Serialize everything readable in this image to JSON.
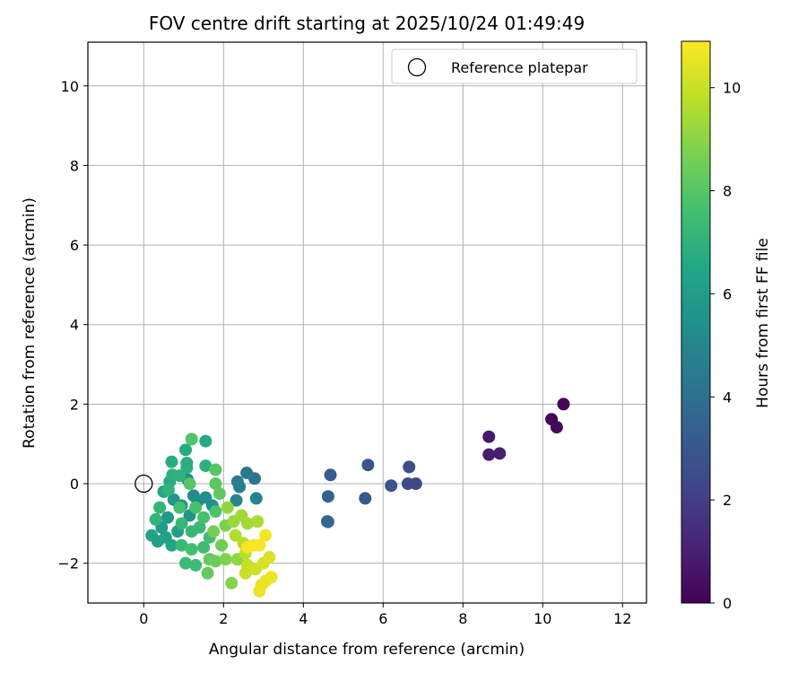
{
  "chart_data": {
    "type": "scatter",
    "title": "FOV centre drift starting at 2025/10/24 01:49:49",
    "xlabel": "Angular distance from reference (arcmin)",
    "ylabel": "Rotation from reference (arcmin)",
    "xlim": [
      -1.4,
      12.6
    ],
    "ylim": [
      -3.0,
      11.1
    ],
    "xticks": [
      "0",
      "2",
      "4",
      "6",
      "8",
      "10",
      "12"
    ],
    "xtick_values": [
      0,
      2,
      4,
      6,
      8,
      10,
      12
    ],
    "yticks": [
      "−2",
      "0",
      "2",
      "4",
      "6",
      "8",
      "10"
    ],
    "ytick_values": [
      -2,
      0,
      2,
      4,
      6,
      8,
      10
    ],
    "grid": true,
    "legend": {
      "position": "top-right",
      "label": "Reference platepar",
      "marker": "open-circle"
    },
    "reference_point": {
      "x": 0,
      "y": 0
    },
    "colorbar": {
      "label": "Hours from first FF file",
      "range": [
        0,
        10.9
      ],
      "ticks": [
        "0",
        "2",
        "4",
        "6",
        "8",
        "10"
      ],
      "tick_values": [
        0,
        2,
        4,
        6,
        8,
        10
      ],
      "colormap": "viridis"
    },
    "points": [
      {
        "x": 10.52,
        "y": 2.0,
        "h": 0.1
      },
      {
        "x": 10.22,
        "y": 1.62,
        "h": 0.2
      },
      {
        "x": 10.35,
        "y": 1.42,
        "h": 0.25
      },
      {
        "x": 8.65,
        "y": 1.18,
        "h": 0.8
      },
      {
        "x": 8.65,
        "y": 0.73,
        "h": 0.9
      },
      {
        "x": 8.92,
        "y": 0.76,
        "h": 0.95
      },
      {
        "x": 6.82,
        "y": 0.0,
        "h": 2.4
      },
      {
        "x": 6.62,
        "y": 0.0,
        "h": 2.5
      },
      {
        "x": 6.65,
        "y": 0.42,
        "h": 2.6
      },
      {
        "x": 6.2,
        "y": -0.05,
        "h": 2.8
      },
      {
        "x": 5.62,
        "y": 0.47,
        "h": 2.9
      },
      {
        "x": 5.55,
        "y": -0.37,
        "h": 3.0
      },
      {
        "x": 4.68,
        "y": 0.22,
        "h": 3.2
      },
      {
        "x": 4.62,
        "y": -0.32,
        "h": 3.4
      },
      {
        "x": 4.6,
        "y": -0.95,
        "h": 3.6
      },
      {
        "x": 4.62,
        "y": -0.96,
        "h": 3.7
      },
      {
        "x": 2.78,
        "y": 0.13,
        "h": 4.2
      },
      {
        "x": 2.58,
        "y": 0.27,
        "h": 4.4
      },
      {
        "x": 2.35,
        "y": 0.05,
        "h": 4.5
      },
      {
        "x": 2.4,
        "y": -0.08,
        "h": 4.7
      },
      {
        "x": 2.82,
        "y": -0.37,
        "h": 4.8
      },
      {
        "x": 2.32,
        "y": -0.42,
        "h": 4.9
      },
      {
        "x": 1.1,
        "y": 0.1,
        "h": 5.0
      },
      {
        "x": 1.25,
        "y": -0.3,
        "h": 5.2
      },
      {
        "x": 1.35,
        "y": -0.45,
        "h": 5.3
      },
      {
        "x": 1.55,
        "y": -0.35,
        "h": 5.4
      },
      {
        "x": 1.72,
        "y": -0.55,
        "h": 5.5
      },
      {
        "x": 0.95,
        "y": -0.55,
        "h": 5.6
      },
      {
        "x": 1.15,
        "y": -0.8,
        "h": 5.6
      },
      {
        "x": 0.75,
        "y": -0.4,
        "h": 5.7
      },
      {
        "x": 0.6,
        "y": -0.85,
        "h": 5.8
      },
      {
        "x": 0.45,
        "y": -1.1,
        "h": 5.9
      },
      {
        "x": 0.85,
        "y": -1.2,
        "h": 6.0
      },
      {
        "x": 0.55,
        "y": -1.35,
        "h": 6.1
      },
      {
        "x": 0.35,
        "y": -1.45,
        "h": 6.2
      },
      {
        "x": 0.2,
        "y": -1.3,
        "h": 6.3
      },
      {
        "x": 0.7,
        "y": -1.55,
        "h": 6.4
      },
      {
        "x": 0.5,
        "y": -0.2,
        "h": 6.5
      },
      {
        "x": 0.65,
        "y": 0.05,
        "h": 6.6
      },
      {
        "x": 1.55,
        "y": 1.07,
        "h": 6.6
      },
      {
        "x": 1.05,
        "y": 0.85,
        "h": 6.7
      },
      {
        "x": 0.7,
        "y": 0.55,
        "h": 6.7
      },
      {
        "x": 1.08,
        "y": 0.52,
        "h": 6.8
      },
      {
        "x": 1.08,
        "y": 0.4,
        "h": 6.8
      },
      {
        "x": 1.55,
        "y": 0.45,
        "h": 6.9
      },
      {
        "x": 0.72,
        "y": 0.22,
        "h": 6.9
      },
      {
        "x": 0.9,
        "y": 0.2,
        "h": 7.0
      },
      {
        "x": 0.62,
        "y": -0.15,
        "h": 7.0
      },
      {
        "x": 0.4,
        "y": -0.6,
        "h": 7.1
      },
      {
        "x": 0.3,
        "y": -0.9,
        "h": 7.1
      },
      {
        "x": 0.95,
        "y": -1.0,
        "h": 7.2
      },
      {
        "x": 1.2,
        "y": -1.2,
        "h": 7.2
      },
      {
        "x": 1.4,
        "y": -1.1,
        "h": 7.3
      },
      {
        "x": 0.95,
        "y": -1.55,
        "h": 7.3
      },
      {
        "x": 1.05,
        "y": -2.0,
        "h": 7.4
      },
      {
        "x": 1.3,
        "y": -2.05,
        "h": 7.4
      },
      {
        "x": 1.5,
        "y": -1.6,
        "h": 7.5
      },
      {
        "x": 1.65,
        "y": -1.35,
        "h": 7.5
      },
      {
        "x": 1.2,
        "y": -1.65,
        "h": 7.6
      },
      {
        "x": 0.9,
        "y": -0.6,
        "h": 7.6
      },
      {
        "x": 1.3,
        "y": -0.6,
        "h": 7.7
      },
      {
        "x": 1.5,
        "y": -0.85,
        "h": 7.7
      },
      {
        "x": 1.8,
        "y": -0.7,
        "h": 7.8
      },
      {
        "x": 1.2,
        "y": 1.12,
        "h": 7.9
      },
      {
        "x": 1.8,
        "y": 0.35,
        "h": 8.0
      },
      {
        "x": 1.15,
        "y": 0.0,
        "h": 8.0
      },
      {
        "x": 1.8,
        "y": 0.0,
        "h": 8.1
      },
      {
        "x": 1.9,
        "y": -0.25,
        "h": 8.2
      },
      {
        "x": 1.65,
        "y": -1.9,
        "h": 8.3
      },
      {
        "x": 1.6,
        "y": -2.25,
        "h": 8.3
      },
      {
        "x": 1.8,
        "y": -1.95,
        "h": 8.4
      },
      {
        "x": 1.95,
        "y": -1.55,
        "h": 8.5
      },
      {
        "x": 1.75,
        "y": -1.2,
        "h": 8.6
      },
      {
        "x": 2.05,
        "y": -1.05,
        "h": 8.7
      },
      {
        "x": 2.05,
        "y": -1.9,
        "h": 8.8
      },
      {
        "x": 2.2,
        "y": -2.5,
        "h": 8.9
      },
      {
        "x": 2.35,
        "y": -1.9,
        "h": 9.0
      },
      {
        "x": 2.1,
        "y": -0.6,
        "h": 9.1
      },
      {
        "x": 2.25,
        "y": -0.95,
        "h": 9.2
      },
      {
        "x": 2.45,
        "y": -0.8,
        "h": 9.3
      },
      {
        "x": 2.6,
        "y": -1.0,
        "h": 9.4
      },
      {
        "x": 2.85,
        "y": -0.95,
        "h": 9.5
      },
      {
        "x": 2.3,
        "y": -1.3,
        "h": 9.6
      },
      {
        "x": 2.5,
        "y": -1.5,
        "h": 9.7
      },
      {
        "x": 2.55,
        "y": -1.75,
        "h": 9.8
      },
      {
        "x": 2.6,
        "y": -2.05,
        "h": 9.9
      },
      {
        "x": 2.55,
        "y": -2.25,
        "h": 10.0
      },
      {
        "x": 2.8,
        "y": -2.15,
        "h": 10.1
      },
      {
        "x": 3.0,
        "y": -2.0,
        "h": 10.2
      },
      {
        "x": 3.15,
        "y": -1.85,
        "h": 10.3
      },
      {
        "x": 2.95,
        "y": -2.55,
        "h": 10.4
      },
      {
        "x": 3.05,
        "y": -2.45,
        "h": 10.5
      },
      {
        "x": 3.2,
        "y": -2.35,
        "h": 10.6
      },
      {
        "x": 2.9,
        "y": -2.7,
        "h": 10.6
      },
      {
        "x": 3.05,
        "y": -1.3,
        "h": 10.7
      },
      {
        "x": 2.75,
        "y": -1.55,
        "h": 10.7
      },
      {
        "x": 2.9,
        "y": -1.55,
        "h": 10.8
      },
      {
        "x": 2.6,
        "y": -1.6,
        "h": 10.8
      }
    ]
  }
}
